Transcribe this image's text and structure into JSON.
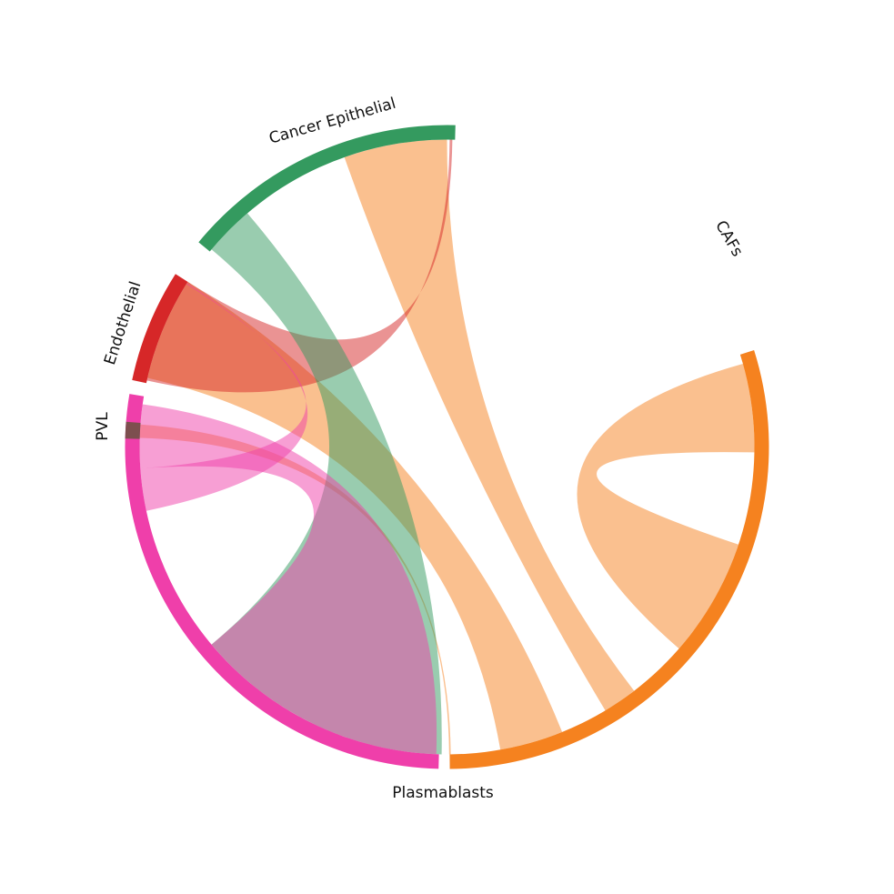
{
  "chart_data": {
    "type": "chord",
    "title": "",
    "groups": [
      {
        "name": "CAFs",
        "color": "#f5821f",
        "start": -17.5,
        "end": 89.5
      },
      {
        "name": "Plasmablasts",
        "color": "#ef3faa",
        "start": 91.5,
        "end": 189.5
      },
      {
        "name": "PVL",
        "color": "#7d4f4f",
        "start": 181.5,
        "end": 184.5
      },
      {
        "name": "Endothelial",
        "color": "#d62728",
        "start": 192.0,
        "end": 212.5
      },
      {
        "name": "Cancer Epithelial",
        "color": "#349a5f",
        "start": 219.5,
        "end": 271.5
      }
    ],
    "chords": [
      {
        "source": "CAFs",
        "target": "CAFs",
        "color": "#f5821f",
        "a": [
          -15.7,
          1.0
        ],
        "b": [
          18.5,
          41.0
        ]
      },
      {
        "source": "CAFs",
        "target": "Cancer Epithelial",
        "color": "#f5821f",
        "a": [
          52.5,
          59.0
        ],
        "b": [
          250.5,
          270.0
        ]
      },
      {
        "source": "CAFs",
        "target": "Plasmablasts",
        "color": "#f5821f",
        "a": [
          68.0,
          80.0
        ],
        "b": [
          193.0,
          212.5
        ]
      },
      {
        "source": "CAFs",
        "target": "PVL",
        "color": "#f5821f",
        "a": [
          89.3,
          89.6
        ],
        "b": [
          181.7,
          184.2
        ]
      },
      {
        "source": "Endothelial",
        "target": "Cancer Epithelial",
        "color": "#d62728",
        "a": [
          192.5,
          212.5
        ],
        "b": [
          271.0,
          270.5
        ]
      },
      {
        "source": "Cancer Epithelial",
        "target": "Plasmablasts",
        "color": "#349a5f",
        "a": [
          220.0,
          229.5
        ],
        "b": [
          91.0,
          140.0
        ]
      },
      {
        "source": "Plasmablasts",
        "target": "Plasmablasts",
        "color": "#ef3faa",
        "a": [
          92.0,
          140.0
        ],
        "b": [
          176.0,
          188.0
        ]
      },
      {
        "source": "Plasmablasts",
        "target": "Endothelial",
        "color": "#ef3faa",
        "a": [
          168.0,
          176.0
        ],
        "b": [
          212.0,
          212.2
        ]
      }
    ]
  }
}
